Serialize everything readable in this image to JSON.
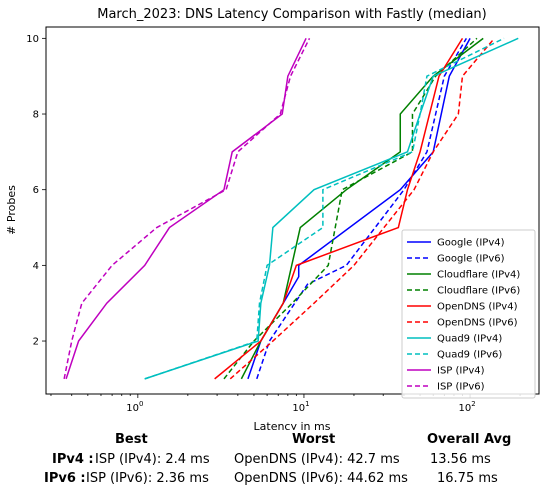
{
  "chart_data": {
    "type": "line",
    "title": "March_2023: DNS Latency Comparison with Fastly (median)",
    "xlabel": "Latency in ms",
    "ylabel": "# Probes",
    "xscale": "log",
    "xlim": [
      0.28,
      260
    ],
    "ylim": [
      0.6,
      10.3
    ],
    "xticks": [
      {
        "value": 1,
        "base": "10",
        "exp": "0"
      },
      {
        "value": 10,
        "base": "10",
        "exp": "1"
      },
      {
        "value": 100,
        "base": "10",
        "exp": "2"
      }
    ],
    "yticks": [
      2,
      4,
      6,
      8,
      10
    ],
    "grid": false,
    "legend_position": "lower-right",
    "series": [
      {
        "name": "Google (IPv4)",
        "color": "#0000ff",
        "dash": "solid",
        "points": [
          [
            4.6,
            1
          ],
          [
            5.5,
            2
          ],
          [
            7.5,
            3
          ],
          [
            9.3,
            3.7
          ],
          [
            9.3,
            4
          ],
          [
            38,
            6
          ],
          [
            60,
            7
          ],
          [
            75,
            9
          ],
          [
            100,
            10
          ]
        ]
      },
      {
        "name": "Google (IPv6)",
        "color": "#0000ff",
        "dash": "dashed",
        "points": [
          [
            5.2,
            1
          ],
          [
            6.2,
            2
          ],
          [
            8.8,
            3
          ],
          [
            10.5,
            3.5
          ],
          [
            18,
            4
          ],
          [
            40,
            6
          ],
          [
            55,
            7
          ],
          [
            70,
            9
          ],
          [
            95,
            10
          ]
        ]
      },
      {
        "name": "Cloudflare (IPv4)",
        "color": "#008000",
        "dash": "solid",
        "points": [
          [
            4.2,
            1
          ],
          [
            5.5,
            2
          ],
          [
            7.5,
            3
          ],
          [
            9.5,
            5
          ],
          [
            18,
            6
          ],
          [
            38,
            7
          ],
          [
            38,
            8
          ],
          [
            60,
            9
          ],
          [
            120,
            10
          ]
        ]
      },
      {
        "name": "Cloudflare (IPv6)",
        "color": "#008000",
        "dash": "dashed",
        "points": [
          [
            3.3,
            1
          ],
          [
            5,
            2
          ],
          [
            8.5,
            3
          ],
          [
            14,
            4
          ],
          [
            17,
            6
          ],
          [
            45,
            7
          ],
          [
            45,
            8
          ],
          [
            62,
            9
          ],
          [
            110,
            10
          ]
        ]
      },
      {
        "name": "OpenDNS (IPv4)",
        "color": "#ff0000",
        "dash": "solid",
        "points": [
          [
            2.9,
            1
          ],
          [
            5.5,
            2
          ],
          [
            7.5,
            3
          ],
          [
            9,
            4
          ],
          [
            37,
            5
          ],
          [
            42,
            6
          ],
          [
            50,
            7
          ],
          [
            65,
            9
          ],
          [
            90,
            10
          ]
        ]
      },
      {
        "name": "OpenDNS (IPv6)",
        "color": "#ff0000",
        "dash": "dashed",
        "points": [
          [
            3.6,
            1
          ],
          [
            6.5,
            2
          ],
          [
            11.5,
            3
          ],
          [
            20,
            4
          ],
          [
            46,
            6
          ],
          [
            60,
            7
          ],
          [
            85,
            8
          ],
          [
            90,
            9
          ],
          [
            140,
            10
          ]
        ]
      },
      {
        "name": "Quad9 (IPv4)",
        "color": "#00bfbf",
        "dash": "solid",
        "points": [
          [
            1.1,
            1
          ],
          [
            5.3,
            2
          ],
          [
            5.5,
            3
          ],
          [
            6.2,
            4
          ],
          [
            6.5,
            5
          ],
          [
            11.5,
            6
          ],
          [
            42,
            7
          ],
          [
            50,
            8
          ],
          [
            60,
            9
          ],
          [
            195,
            10
          ]
        ]
      },
      {
        "name": "Quad9 (IPv6)",
        "color": "#00bfbf",
        "dash": "dashed",
        "points": [
          [
            1.1,
            1
          ],
          [
            5.2,
            2
          ],
          [
            5.4,
            3
          ],
          [
            6,
            4
          ],
          [
            13,
            5
          ],
          [
            13,
            6
          ],
          [
            45,
            7
          ],
          [
            50,
            8
          ],
          [
            55,
            9
          ],
          [
            160,
            10
          ]
        ]
      },
      {
        "name": "ISP (IPv4)",
        "color": "#bf00bf",
        "dash": "solid",
        "points": [
          [
            0.37,
            1
          ],
          [
            0.44,
            2
          ],
          [
            0.65,
            3
          ],
          [
            1.1,
            4
          ],
          [
            1.55,
            5
          ],
          [
            3.3,
            6
          ],
          [
            3.7,
            7
          ],
          [
            7.4,
            8
          ],
          [
            8,
            9
          ],
          [
            10.3,
            10
          ]
        ]
      },
      {
        "name": "ISP (IPv6)",
        "color": "#bf00bf",
        "dash": "dashed",
        "points": [
          [
            0.36,
            1
          ],
          [
            0.4,
            2
          ],
          [
            0.46,
            3
          ],
          [
            0.7,
            4
          ],
          [
            1.3,
            5
          ],
          [
            3.4,
            6
          ],
          [
            4,
            7
          ],
          [
            7.2,
            8
          ],
          [
            8.3,
            9
          ],
          [
            10.8,
            10
          ]
        ]
      }
    ]
  },
  "summary": {
    "headers": {
      "best": "Best",
      "worst": "Worst",
      "avg": "Overall Avg"
    },
    "rows": [
      {
        "label": "IPv4 :",
        "best": "ISP (IPv4): 2.4 ms",
        "worst": "OpenDNS (IPv4): 42.7 ms",
        "avg": "13.56 ms"
      },
      {
        "label": "IPv6 :",
        "best": "ISP (IPv6): 2.36 ms",
        "worst": "OpenDNS (IPv6): 44.62 ms",
        "avg": "16.75 ms"
      }
    ]
  }
}
